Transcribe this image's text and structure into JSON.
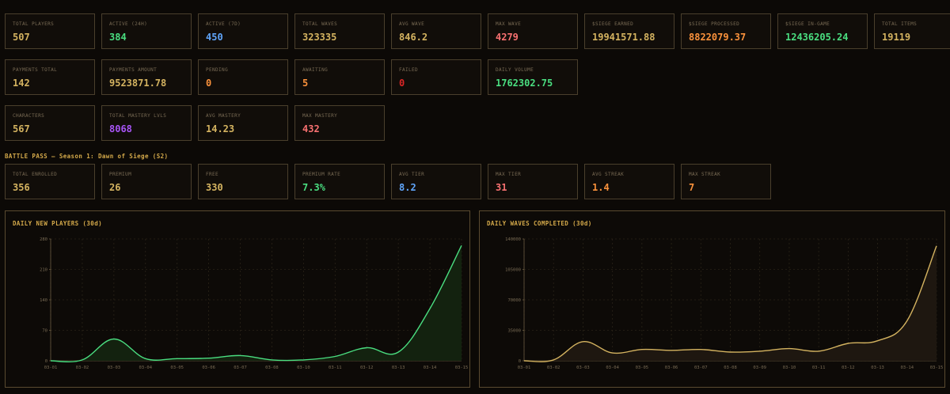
{
  "stats_rows": [
    {
      "cards": [
        {
          "label": "TOTAL PLAYERS",
          "value": "507",
          "color": "#d4b360"
        },
        {
          "label": "ACTIVE (24H)",
          "value": "384",
          "color": "#4ade80"
        },
        {
          "label": "ACTIVE (7D)",
          "value": "450",
          "color": "#60a5fa"
        },
        {
          "label": "TOTAL WAVES",
          "value": "323335",
          "color": "#d4b360"
        },
        {
          "label": "AVG WAVE",
          "value": "846.2",
          "color": "#d4b360"
        },
        {
          "label": "MAX WAVE",
          "value": "4279",
          "color": "#f87171"
        },
        {
          "label": "$SIEGE EARNED",
          "value": "19941571.88",
          "color": "#d4b360"
        },
        {
          "label": "$SIEGE PROCESSED",
          "value": "8822079.37",
          "color": "#fb923c"
        },
        {
          "label": "$SIEGE IN-GAME",
          "value": "12436205.24",
          "color": "#4ade80"
        },
        {
          "label": "TOTAL ITEMS",
          "value": "19119",
          "color": "#d4b360"
        }
      ]
    },
    {
      "cards": [
        {
          "label": "PAYMENTS TOTAL",
          "value": "142",
          "color": "#d4b360"
        },
        {
          "label": "PAYMENTS AMOUNT",
          "value": "9523871.78",
          "color": "#d4b360"
        },
        {
          "label": "PENDING",
          "value": "0",
          "color": "#fb923c"
        },
        {
          "label": "AWAITING",
          "value": "5",
          "color": "#fb923c"
        },
        {
          "label": "FAILED",
          "value": "0",
          "color": "#dc2626"
        },
        {
          "label": "DAILY VOLUME",
          "value": "1762302.75",
          "color": "#4ade80"
        }
      ]
    },
    {
      "cards": [
        {
          "label": "CHARACTERS",
          "value": "567",
          "color": "#d4b360"
        },
        {
          "label": "TOTAL MASTERY LVLS",
          "value": "8068",
          "color": "#a855f7"
        },
        {
          "label": "AVG MASTERY",
          "value": "14.23",
          "color": "#d4b360"
        },
        {
          "label": "MAX MASTERY",
          "value": "432",
          "color": "#f87171"
        }
      ]
    }
  ],
  "battle_pass": {
    "title": "BATTLE PASS — Season 1: Dawn of Siege (S2)",
    "cards": [
      {
        "label": "TOTAL ENROLLED",
        "value": "356",
        "color": "#d4b360"
      },
      {
        "label": "PREMIUM",
        "value": "26",
        "color": "#d4b360"
      },
      {
        "label": "FREE",
        "value": "330",
        "color": "#d4b360"
      },
      {
        "label": "PREMIUM RATE",
        "value": "7.3%",
        "color": "#4ade80"
      },
      {
        "label": "AVG TIER",
        "value": "8.2",
        "color": "#60a5fa"
      },
      {
        "label": "MAX TIER",
        "value": "31",
        "color": "#f87171"
      },
      {
        "label": "AVG STREAK",
        "value": "1.4",
        "color": "#fb923c"
      },
      {
        "label": "MAX STREAK",
        "value": "7",
        "color": "#fb923c"
      }
    ]
  },
  "chart_data": [
    {
      "type": "area",
      "title": "DAILY NEW PLAYERS (30d)",
      "x": [
        "03-01",
        "03-02",
        "03-03",
        "03-04",
        "03-05",
        "03-06",
        "03-07",
        "03-08",
        "03-10",
        "03-11",
        "03-12",
        "03-13",
        "03-14",
        "03-15"
      ],
      "y": [
        0,
        2,
        50,
        5,
        5,
        6,
        12,
        2,
        2,
        10,
        30,
        20,
        120,
        265
      ],
      "yticks": [
        0,
        70,
        140,
        210,
        280
      ],
      "ylim": [
        0,
        280
      ],
      "line_color": "#4ade80",
      "fill_color": "#13220f",
      "grid": true
    },
    {
      "type": "area",
      "title": "DAILY WAVES COMPLETED (30d)",
      "x": [
        "03-01",
        "03-02",
        "03-03",
        "03-04",
        "03-05",
        "03-06",
        "03-07",
        "03-08",
        "03-09",
        "03-10",
        "03-11",
        "03-12",
        "03-13",
        "03-14",
        "03-15"
      ],
      "y": [
        0,
        1000,
        22000,
        9000,
        13000,
        12000,
        13000,
        10000,
        11000,
        14000,
        11000,
        20000,
        23000,
        46000,
        132000
      ],
      "yticks": [
        0,
        35000,
        70000,
        105000,
        140000
      ],
      "ylim": [
        0,
        140000
      ],
      "line_color": "#d4b360",
      "fill_color": "#1e1710",
      "grid": true
    }
  ]
}
